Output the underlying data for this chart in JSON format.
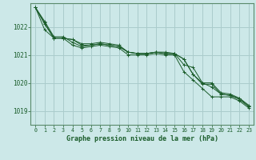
{
  "title": "Graphe pression niveau de la mer (hPa)",
  "bg_color": "#cce8e8",
  "grid_color": "#aacccc",
  "line_color": "#1a5c2a",
  "spine_color": "#5a8a6a",
  "xlim": [
    -0.5,
    23.5
  ],
  "ylim": [
    1018.5,
    1022.85
  ],
  "yticks": [
    1019,
    1020,
    1021,
    1022
  ],
  "xticks": [
    0,
    1,
    2,
    3,
    4,
    5,
    6,
    7,
    8,
    9,
    10,
    11,
    12,
    13,
    14,
    15,
    16,
    17,
    18,
    19,
    20,
    21,
    22,
    23
  ],
  "series": [
    [
      1022.7,
      1022.2,
      1021.65,
      1021.65,
      1021.45,
      1021.3,
      1021.35,
      1021.4,
      1021.35,
      1021.3,
      1021.1,
      1021.05,
      1021.05,
      1021.1,
      1021.05,
      1021.05,
      1020.65,
      1020.55,
      1020.0,
      1019.85,
      1019.6,
      1019.55,
      1019.45,
      1019.15
    ],
    [
      1022.7,
      1022.15,
      1021.6,
      1021.6,
      1021.35,
      1021.25,
      1021.3,
      1021.35,
      1021.3,
      1021.25,
      1021.0,
      1021.0,
      1021.0,
      1021.05,
      1021.0,
      1021.0,
      1020.4,
      1020.1,
      1019.8,
      1019.5,
      1019.5,
      1019.5,
      1019.35,
      1019.1
    ],
    [
      1022.7,
      1022.1,
      1021.6,
      1021.6,
      1021.55,
      1021.35,
      1021.35,
      1021.4,
      1021.35,
      1021.3,
      1021.1,
      1021.05,
      1021.05,
      1021.1,
      1021.05,
      1021.05,
      1020.85,
      1020.3,
      1019.95,
      1019.95,
      1019.6,
      1019.55,
      1019.4,
      1019.15
    ],
    [
      1022.7,
      1021.9,
      1021.6,
      1021.6,
      1021.55,
      1021.4,
      1021.4,
      1021.45,
      1021.4,
      1021.35,
      1021.1,
      1021.05,
      1021.05,
      1021.1,
      1021.1,
      1021.05,
      1020.85,
      1020.3,
      1020.0,
      1020.0,
      1019.65,
      1019.6,
      1019.45,
      1019.2
    ]
  ]
}
